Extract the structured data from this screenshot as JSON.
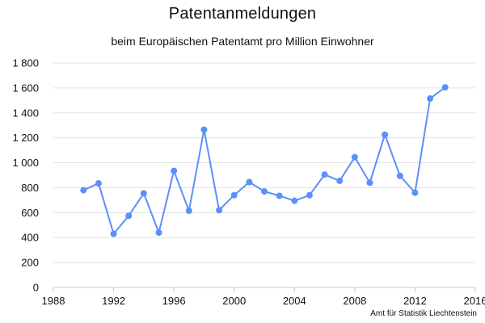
{
  "chart_data": {
    "type": "line",
    "title": "Patentanmeldungen",
    "subtitle": "beim Europäischen Patentamt pro Million Einwohner",
    "source": "Amt für Statistik Liechtenstein",
    "xlabel": "",
    "ylabel": "",
    "xlim": [
      1988,
      2016
    ],
    "ylim": [
      0,
      1800
    ],
    "x_ticks": [
      1988,
      1992,
      1996,
      2000,
      2004,
      2008,
      2012,
      2016
    ],
    "y_ticks": [
      0,
      200,
      400,
      600,
      800,
      1000,
      1200,
      1400,
      1600,
      1800
    ],
    "x_tick_labels": [
      "1988",
      "1992",
      "1996",
      "2000",
      "2004",
      "2008",
      "2012",
      "2016"
    ],
    "y_tick_labels": [
      "0",
      "200",
      "400",
      "600",
      "800",
      "1 000",
      "1 200",
      "1 400",
      "1 600",
      "1 800"
    ],
    "grid": "horizontal",
    "series": [
      {
        "color": "#5b8ff9",
        "x": [
          1990,
          1991,
          1992,
          1993,
          1994,
          1995,
          1996,
          1997,
          1998,
          1999,
          2000,
          2001,
          2002,
          2003,
          2004,
          2005,
          2006,
          2007,
          2008,
          2009,
          2010,
          2011,
          2012,
          2013,
          2014
        ],
        "values": [
          780,
          835,
          430,
          575,
          755,
          440,
          935,
          615,
          1265,
          620,
          740,
          845,
          770,
          735,
          695,
          740,
          905,
          855,
          1045,
          840,
          1225,
          895,
          760,
          1515,
          1605
        ]
      }
    ]
  }
}
